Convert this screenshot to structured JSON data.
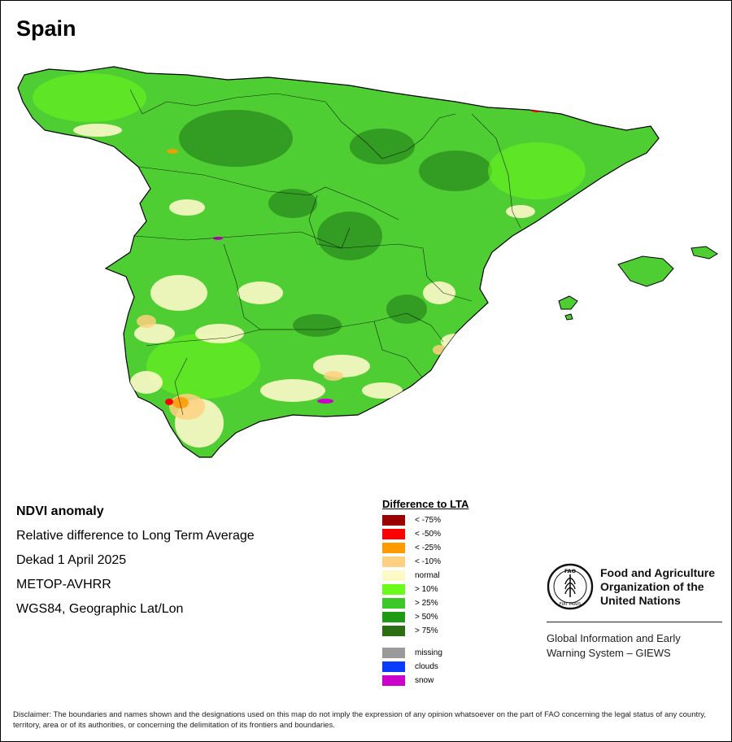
{
  "map": {
    "title": "Spain",
    "colors": {
      "land_base": "#4ece32",
      "dark_green": "#2a8c1e",
      "normal": "#fdfac8",
      "coast_line": "#000000"
    }
  },
  "info": {
    "product": "NDVI anomaly",
    "description": "Relative difference to Long Term Average",
    "period": "Dekad 1 April 2025",
    "sensor": "METOP-AVHRR",
    "projection": "WGS84, Geographic Lat/Lon"
  },
  "legend": {
    "title": "Difference to LTA",
    "classes": [
      {
        "label": "< -75%",
        "color": "#9b0000"
      },
      {
        "label": "< -50%",
        "color": "#ff0000"
      },
      {
        "label": "< -25%",
        "color": "#ff9a00"
      },
      {
        "label": "< -10%",
        "color": "#ffd080"
      },
      {
        "label": "normal",
        "color": "#fdfac8"
      },
      {
        "label": "> 10%",
        "color": "#6cfa1e"
      },
      {
        "label": "> 25%",
        "color": "#3cc828"
      },
      {
        "label": "> 50%",
        "color": "#1e9a14"
      },
      {
        "label": "> 75%",
        "color": "#2d6e14"
      }
    ],
    "extra": [
      {
        "label": "missing",
        "color": "#9a9a9a"
      },
      {
        "label": "clouds",
        "color": "#0a3cff"
      },
      {
        "label": "snow",
        "color": "#cc00cc"
      }
    ]
  },
  "organization": {
    "name": "Food and Agriculture Organization of the United Nations",
    "logo_letters": "FAO",
    "logo_motto": "FIAT PANIS",
    "system": "Global Information and Early Warning System – GIEWS"
  },
  "disclaimer": "Disclaimer: The boundaries and names shown and the designations used on this map do not imply the expression of any opinion whatsoever on the part of FAO concerning the legal status of any country, territory, area or of its authorities, or concerning the delimitation of its frontiers and boundaries."
}
